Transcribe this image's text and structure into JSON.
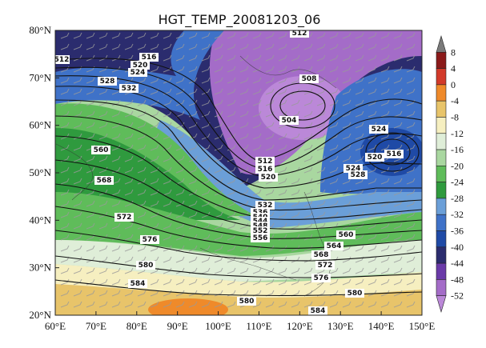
{
  "chart_data": {
    "type": "heatmap",
    "title": "HGT_TEMP_20081203_06",
    "x_ticks": [
      "60°E",
      "70°E",
      "80°E",
      "90°E",
      "100°E",
      "110°E",
      "120°E",
      "130°E",
      "140°E",
      "150°E"
    ],
    "y_ticks": [
      "80°N",
      "70°N",
      "60°N",
      "50°N",
      "40°N",
      "30°N",
      "20°N"
    ],
    "xlim": [
      60,
      150
    ],
    "ylim": [
      20,
      80
    ],
    "colorbar": {
      "labels": [
        "8",
        "4",
        "0",
        "-4",
        "-8",
        "-12",
        "-16",
        "-20",
        "-24",
        "-28",
        "-32",
        "-36",
        "-40",
        "-44",
        "-48",
        "-52"
      ],
      "colors": [
        "#7a7a7a",
        "#8b1a1a",
        "#d23a2a",
        "#ef8a2a",
        "#e8c46a",
        "#f6efc0",
        "#dfeed8",
        "#a9d7a0",
        "#5fbc5a",
        "#2f9a3e",
        "#6b9fd8",
        "#3f72c8",
        "#1f4aa6",
        "#2b2c6e",
        "#6a3aa8",
        "#a46cc8",
        "#bb88d8"
      ]
    },
    "contour_labels": [
      "512",
      "516",
      "520",
      "524",
      "528",
      "532",
      "508",
      "504",
      "512",
      "516",
      "520",
      "524",
      "528",
      "532",
      "536",
      "540",
      "544",
      "548",
      "552",
      "556",
      "560",
      "560",
      "564",
      "568",
      "568",
      "572",
      "572",
      "576",
      "576",
      "580",
      "580",
      "580",
      "584",
      "584",
      "524",
      "516",
      "520",
      "512"
    ],
    "grid": false
  }
}
